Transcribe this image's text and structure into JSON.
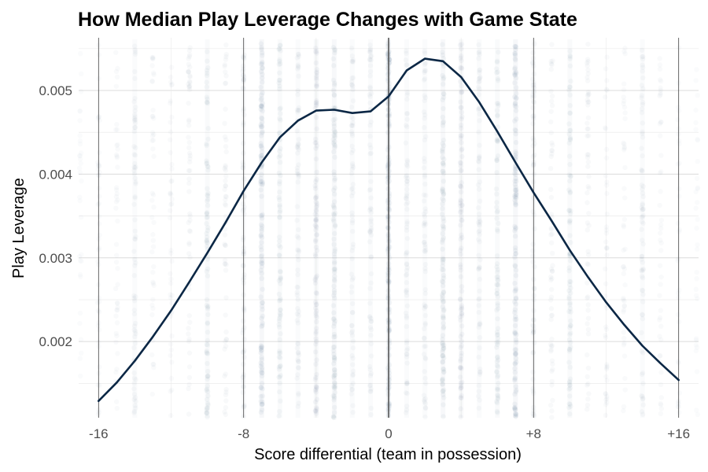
{
  "chart_data": {
    "type": "line",
    "title": "How Median Play Leverage Changes with Game State",
    "xlabel": "Score differential (team in possession)",
    "ylabel": "Play Leverage",
    "xlim": [
      -17.1,
      17.1
    ],
    "ylim": [
      0.00109,
      0.00563
    ],
    "x_ticks": [
      {
        "value": -16,
        "label": "-16"
      },
      {
        "value": -8,
        "label": "-8"
      },
      {
        "value": 0,
        "label": "0"
      },
      {
        "value": 8,
        "label": "+8"
      },
      {
        "value": 16,
        "label": "+16"
      }
    ],
    "y_ticks": [
      {
        "value": 0.002,
        "label": "0.002"
      },
      {
        "value": 0.003,
        "label": "0.003"
      },
      {
        "value": 0.004,
        "label": "0.004"
      },
      {
        "value": 0.005,
        "label": "0.005"
      }
    ],
    "grid": true,
    "colors": {
      "line": "#0b2745",
      "points": "#607d95",
      "grid": "#dcdcdc",
      "vline": "#555555"
    },
    "series": [
      {
        "x": [
          -16,
          -15,
          -14,
          -13,
          -12,
          -11,
          -10,
          -9,
          -8,
          -7,
          -6,
          -5,
          -4,
          -3,
          -2,
          -1,
          0,
          1,
          2,
          3,
          4,
          5,
          6,
          7,
          8,
          9,
          10,
          11,
          12,
          13,
          14,
          15,
          16
        ],
        "values": [
          0.00129,
          0.00151,
          0.00177,
          0.00206,
          0.00237,
          0.00271,
          0.00306,
          0.00342,
          0.0038,
          0.00414,
          0.00444,
          0.00464,
          0.00476,
          0.00477,
          0.00473,
          0.00475,
          0.00493,
          0.00524,
          0.00538,
          0.00535,
          0.00516,
          0.00486,
          0.00451,
          0.00414,
          0.00378,
          0.00344,
          0.00309,
          0.00277,
          0.00247,
          0.0022,
          0.00195,
          0.00174,
          0.00154
        ]
      }
    ],
    "scatter_columns": [
      {
        "x": -17,
        "density": 1
      },
      {
        "x": -16,
        "density": 2
      },
      {
        "x": -15,
        "density": 2
      },
      {
        "x": -14,
        "density": 4
      },
      {
        "x": -13,
        "density": 2
      },
      {
        "x": -12,
        "density": 2
      },
      {
        "x": -11,
        "density": 3
      },
      {
        "x": -10,
        "density": 5
      },
      {
        "x": -9,
        "density": 3
      },
      {
        "x": -8,
        "density": 4
      },
      {
        "x": -7,
        "density": 8
      },
      {
        "x": -6,
        "density": 5
      },
      {
        "x": -5,
        "density": 4
      },
      {
        "x": -4,
        "density": 6
      },
      {
        "x": -3,
        "density": 7
      },
      {
        "x": -2,
        "density": 4
      },
      {
        "x": -1,
        "density": 4
      },
      {
        "x": 0,
        "density": 10
      },
      {
        "x": 1,
        "density": 4
      },
      {
        "x": 2,
        "density": 4
      },
      {
        "x": 3,
        "density": 7
      },
      {
        "x": 4,
        "density": 6
      },
      {
        "x": 5,
        "density": 4
      },
      {
        "x": 6,
        "density": 5
      },
      {
        "x": 7,
        "density": 8
      },
      {
        "x": 8,
        "density": 4
      },
      {
        "x": 9,
        "density": 3
      },
      {
        "x": 10,
        "density": 5
      },
      {
        "x": 11,
        "density": 3
      },
      {
        "x": 12,
        "density": 2
      },
      {
        "x": 13,
        "density": 2
      },
      {
        "x": 14,
        "density": 4
      },
      {
        "x": 15,
        "density": 2
      },
      {
        "x": 16,
        "density": 1
      },
      {
        "x": 17,
        "density": 1
      }
    ]
  }
}
